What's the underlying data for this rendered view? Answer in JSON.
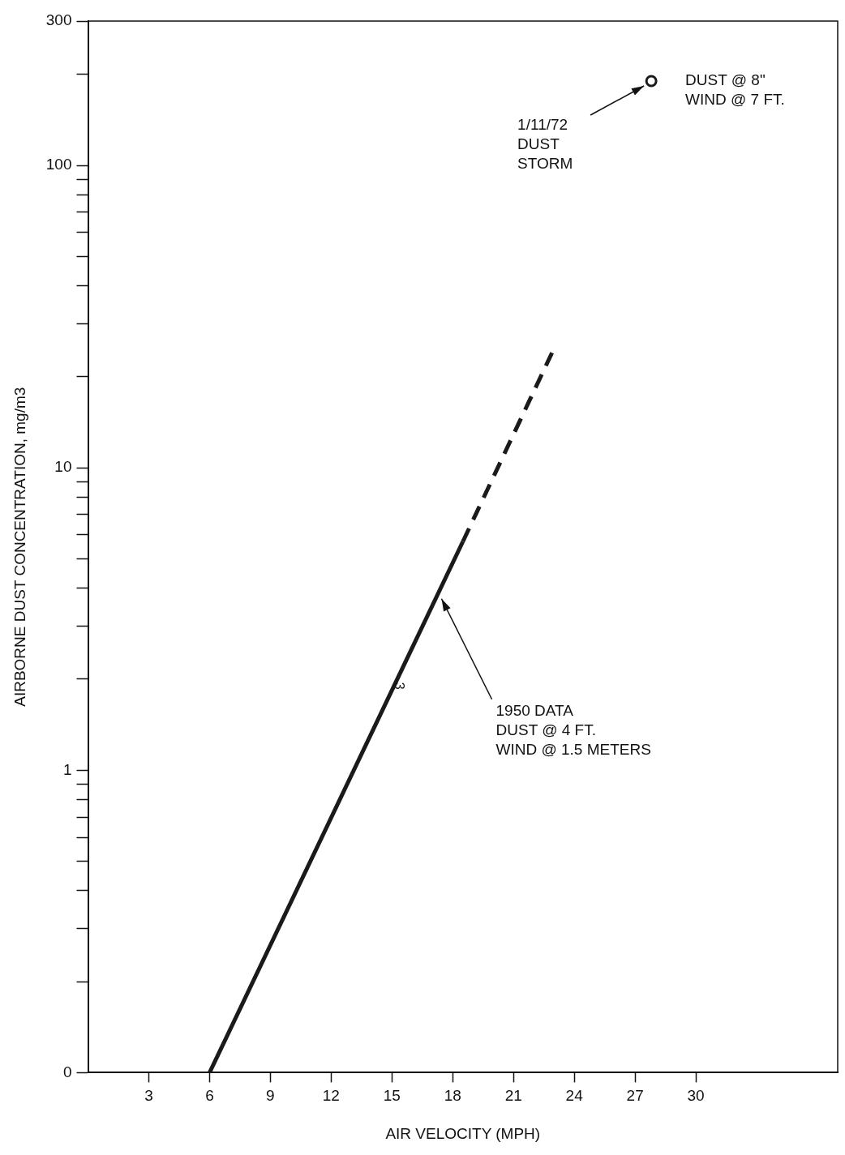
{
  "chart_data": {
    "type": "line",
    "xlabel": "AIR VELOCITY (MPH)",
    "ylabel": "AIRBORNE DUST CONCENTRATION, mg/m3",
    "log": "y",
    "grid": false,
    "legend": false,
    "xlim": [
      0,
      37
    ],
    "xticks": [
      3,
      6,
      9,
      12,
      15,
      18,
      21,
      24,
      27,
      30
    ],
    "ylim": [
      0.1,
      300
    ],
    "yticks": [
      {
        "value": 0.1,
        "label": "0"
      },
      {
        "value": 0.2,
        "label": null
      },
      {
        "value": 0.3,
        "label": null
      },
      {
        "value": 0.4,
        "label": null
      },
      {
        "value": 0.5,
        "label": null
      },
      {
        "value": 0.6,
        "label": null
      },
      {
        "value": 0.7,
        "label": null
      },
      {
        "value": 0.8,
        "label": null
      },
      {
        "value": 0.9,
        "label": null
      },
      1,
      {
        "value": 2,
        "label": null
      },
      {
        "value": 3,
        "label": null
      },
      {
        "value": 4,
        "label": null
      },
      {
        "value": 5,
        "label": null
      },
      {
        "value": 6,
        "label": null
      },
      {
        "value": 7,
        "label": null
      },
      {
        "value": 8,
        "label": null
      },
      {
        "value": 9,
        "label": null
      },
      10,
      {
        "value": 20,
        "label": null
      },
      {
        "value": 30,
        "label": null
      },
      {
        "value": 40,
        "label": null
      },
      {
        "value": 50,
        "label": null
      },
      {
        "value": 60,
        "label": null
      },
      {
        "value": 70,
        "label": null
      },
      {
        "value": 80,
        "label": null
      },
      {
        "value": 90,
        "label": null
      },
      100,
      {
        "value": 200,
        "label": null
      },
      300
    ],
    "series": [
      {
        "type": "line",
        "color": "#1a1a1a",
        "x": [
          6,
          18.5
        ],
        "values": [
          0.1,
          5.7
        ],
        "line_style": "solid",
        "marker": "none"
      },
      {
        "type": "line",
        "color": "#1a1a1a",
        "x": [
          18.5,
          22.9
        ],
        "values": [
          5.7,
          24
        ],
        "line_style": "dashed",
        "marker": "none"
      },
      {
        "type": "scatter",
        "color": "#1a1a1a",
        "x": [
          27.8
        ],
        "values": [
          190
        ],
        "marker": "circle"
      }
    ],
    "annotations": [
      "DUST @ 8\"\nWIND @ 7 FT.",
      "1/11/72\nDUST\nSTORM",
      "1950 DATA\nDUST @ 4 FT.\nWIND @ 1.5 METERS",
      "3"
    ]
  }
}
